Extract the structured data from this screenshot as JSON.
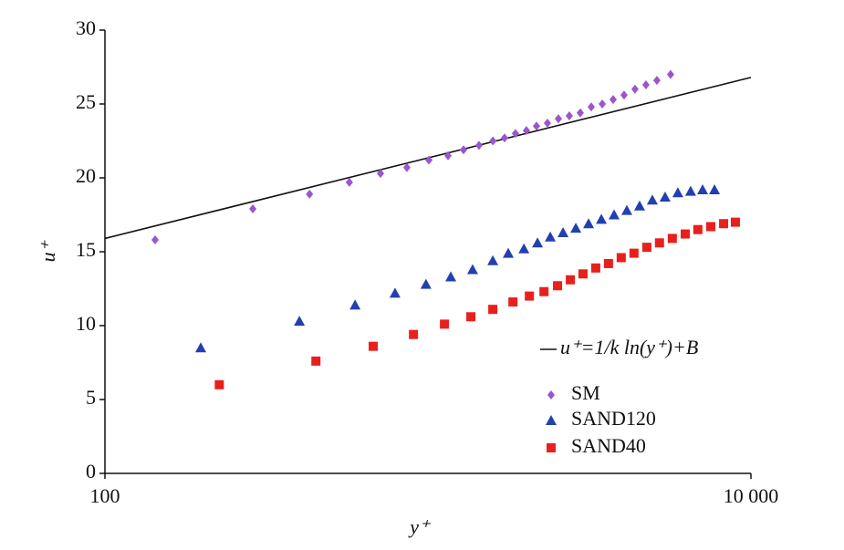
{
  "chart_data": {
    "type": "scatter",
    "xlabel": "y⁺",
    "ylabel": "u⁺",
    "xscale": "log",
    "xlim": [
      100,
      10000
    ],
    "xticks": [
      100,
      {
        "value": 10000,
        "label": "10 000"
      }
    ],
    "ylim": [
      0,
      30
    ],
    "yticks": [
      0,
      5,
      10,
      15,
      20,
      25,
      30
    ],
    "legend": "lower right",
    "series": [
      {
        "name": "u⁺=1/k ln(y⁺)+B",
        "marker": "line",
        "color": "#111111",
        "x": [
          100,
          10000
        ],
        "values": [
          15.9,
          26.8
        ]
      },
      {
        "name": "SM",
        "marker": "diamond",
        "color": "#9b55cf",
        "x": [
          143,
          287,
          430,
          571,
          713,
          861,
          1007,
          1154,
          1289,
          1439,
          1589,
          1727,
          1866,
          2018,
          2168,
          2344,
          2535,
          2740,
          2963,
          3204,
          3465,
          3745,
          4048,
          4376,
          4731,
          5115,
          5640
        ],
        "values": [
          15.8,
          17.9,
          18.9,
          19.7,
          20.3,
          20.7,
          21.2,
          21.5,
          21.9,
          22.2,
          22.5,
          22.7,
          23.0,
          23.2,
          23.5,
          23.7,
          24.0,
          24.2,
          24.4,
          24.8,
          25.0,
          25.3,
          25.6,
          26.0,
          26.3,
          26.6,
          27.0
        ]
      },
      {
        "name": "SAND120",
        "marker": "triangle",
        "color": "#2340b0",
        "x": [
          198,
          400,
          595,
          791,
          986,
          1177,
          1375,
          1588,
          1773,
          1982,
          2184,
          2392,
          2620,
          2870,
          3143,
          3443,
          3770,
          4129,
          4522,
          4952,
          5423,
          5940,
          6505,
          7085,
          7713
        ],
        "values": [
          8.5,
          10.3,
          11.4,
          12.2,
          12.8,
          13.3,
          13.8,
          14.4,
          14.9,
          15.2,
          15.6,
          16.0,
          16.3,
          16.6,
          16.9,
          17.2,
          17.5,
          17.8,
          18.1,
          18.5,
          18.7,
          19.0,
          19.1,
          19.2,
          19.2
        ]
      },
      {
        "name": "SAND40",
        "marker": "square",
        "color": "#e8201c",
        "x": [
          226,
          450,
          677,
          902,
          1125,
          1358,
          1588,
          1833,
          2061,
          2287,
          2519,
          2760,
          3021,
          3308,
          3622,
          3967,
          4345,
          4760,
          5210,
          5710,
          6260,
          6850,
          7510,
          8230,
          8950
        ],
        "values": [
          6.0,
          7.6,
          8.6,
          9.4,
          10.1,
          10.6,
          11.1,
          11.6,
          12.0,
          12.3,
          12.7,
          13.1,
          13.5,
          13.9,
          14.2,
          14.6,
          14.9,
          15.3,
          15.6,
          15.9,
          16.2,
          16.5,
          16.7,
          16.9,
          17.0
        ]
      }
    ]
  }
}
